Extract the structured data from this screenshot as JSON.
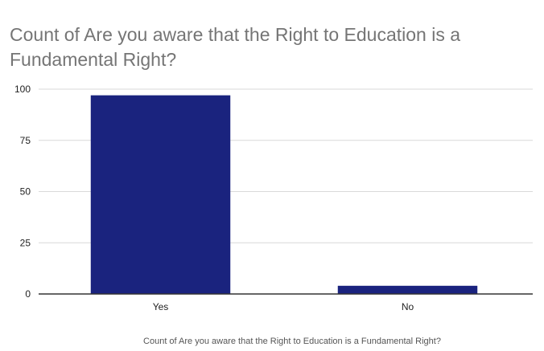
{
  "chart_data": {
    "type": "bar",
    "title": "Count of Are you aware that the Right to Education is a Fundamental Right?",
    "categories": [
      "Yes",
      "No"
    ],
    "values": [
      97,
      4
    ],
    "xlabel": "Count of Are you aware that the Right to Education is a Fundamental Right?",
    "ylabel": "",
    "ylim": [
      0,
      100
    ],
    "yticks": [
      0,
      25,
      50,
      75,
      100
    ],
    "grid": true,
    "legend": "none",
    "bar_color": "#1a237e",
    "gridline_color": "#d9d9d9",
    "baseline_color": "#333333"
  }
}
